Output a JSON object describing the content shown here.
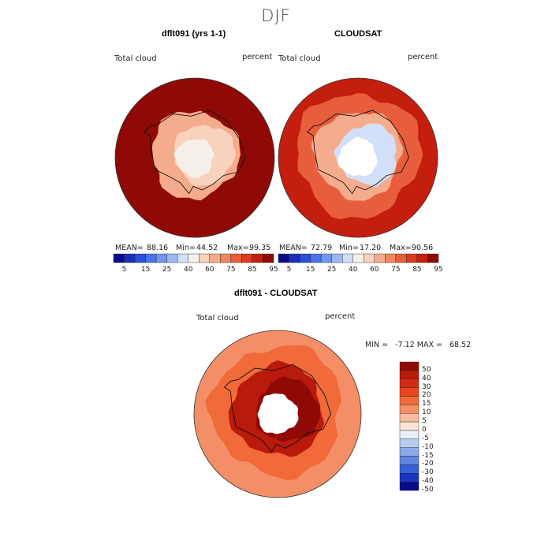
{
  "suptitle": "DJF",
  "panels": [
    {
      "title": "dflt091 (yrs 1-1)",
      "left_label": "Total cloud",
      "right_label": "percent",
      "mean_label": "MEAN=",
      "mean": "88.16",
      "min_label": "Min=",
      "min": "44.52",
      "max_label": "Max=",
      "max": "99.35"
    },
    {
      "title": "CLOUDSAT",
      "left_label": "Total cloud",
      "right_label": "percent",
      "mean_label": "MEAN=",
      "mean": "72.79",
      "min_label": "Min=",
      "min": "17.20",
      "max_label": "Max=",
      "max": "90.56"
    },
    {
      "title": "dflt091 - CLOUDSAT",
      "left_label": "Total cloud",
      "right_label": "percent",
      "minmax_text": "MIN =   -7.12 MAX =   68.52"
    }
  ],
  "chart_data": [
    {
      "type": "heatmap",
      "title": "dflt091 (yrs 1-1)",
      "subtitle": "Total cloud",
      "units": "percent",
      "stats": {
        "mean": 88.16,
        "min": 44.52,
        "max": 99.35
      },
      "regions": [
        {
          "region": "outer ocean ring",
          "value": 97
        },
        {
          "region": "near-coast ring",
          "value": 90
        },
        {
          "region": "antarctic interior",
          "value": 65
        },
        {
          "region": "east interior low",
          "value": 50
        },
        {
          "region": "ross ice shelf",
          "value": 45
        }
      ],
      "colorbar": {
        "ticks": [
          "5",
          "15",
          "25",
          "40",
          "60",
          "75",
          "85",
          "95"
        ],
        "colors": [
          "#0a0a8c",
          "#1a2fb8",
          "#2850d8",
          "#4a73e8",
          "#7096ee",
          "#9cb6f2",
          "#d2dff8",
          "#f5f0ea",
          "#f8d2bc",
          "#f5ac8c",
          "#ef8660",
          "#e85e3c",
          "#dc3a1e",
          "#c41e0e",
          "#8f0a06"
        ]
      }
    },
    {
      "type": "heatmap",
      "title": "CLOUDSAT",
      "subtitle": "Total cloud",
      "units": "percent",
      "stats": {
        "mean": 72.79,
        "min": 17.2,
        "max": 90.56
      },
      "regions": [
        {
          "region": "outer ocean ring",
          "value": 85
        },
        {
          "region": "middle ring",
          "value": 78
        },
        {
          "region": "coastal ring",
          "value": 60
        },
        {
          "region": "east interior",
          "value": 30
        },
        {
          "region": "polar gap",
          "value": null
        }
      ],
      "colorbar": {
        "ticks": [
          "5",
          "15",
          "25",
          "40",
          "60",
          "75",
          "85",
          "95"
        ],
        "colors": [
          "#0a0a8c",
          "#1a2fb8",
          "#2850d8",
          "#4a73e8",
          "#7096ee",
          "#9cb6f2",
          "#d2dff8",
          "#f5f0ea",
          "#f8d2bc",
          "#f5ac8c",
          "#ef8660",
          "#e85e3c",
          "#dc3a1e",
          "#c41e0e",
          "#8f0a06"
        ]
      }
    },
    {
      "type": "heatmap",
      "title": "dflt091 - CLOUDSAT",
      "subtitle": "Total cloud",
      "units": "percent",
      "stats": {
        "min": -7.12,
        "max": 68.52
      },
      "regions": [
        {
          "region": "ocean ring",
          "value": 10
        },
        {
          "region": "coastal band",
          "value": 15
        },
        {
          "region": "antarctic interior",
          "value": 40
        },
        {
          "region": "east interior",
          "value": 50
        },
        {
          "region": "polar gap",
          "value": null
        }
      ],
      "colorbar": {
        "ticks": [
          "50",
          "40",
          "30",
          "20",
          "15",
          "10",
          "5",
          "0",
          "-5",
          "-10",
          "-15",
          "-20",
          "-30",
          "-40",
          "-50"
        ],
        "colors": [
          "#8f0a06",
          "#b81a0c",
          "#d42a14",
          "#e8461e",
          "#f06a3a",
          "#f48e66",
          "#f8bca0",
          "#fbe4d6",
          "#e8eef8",
          "#b6cdf0",
          "#8aaaea",
          "#5e86e0",
          "#3660d8",
          "#1a36c0",
          "#0a0a8c"
        ]
      }
    }
  ]
}
